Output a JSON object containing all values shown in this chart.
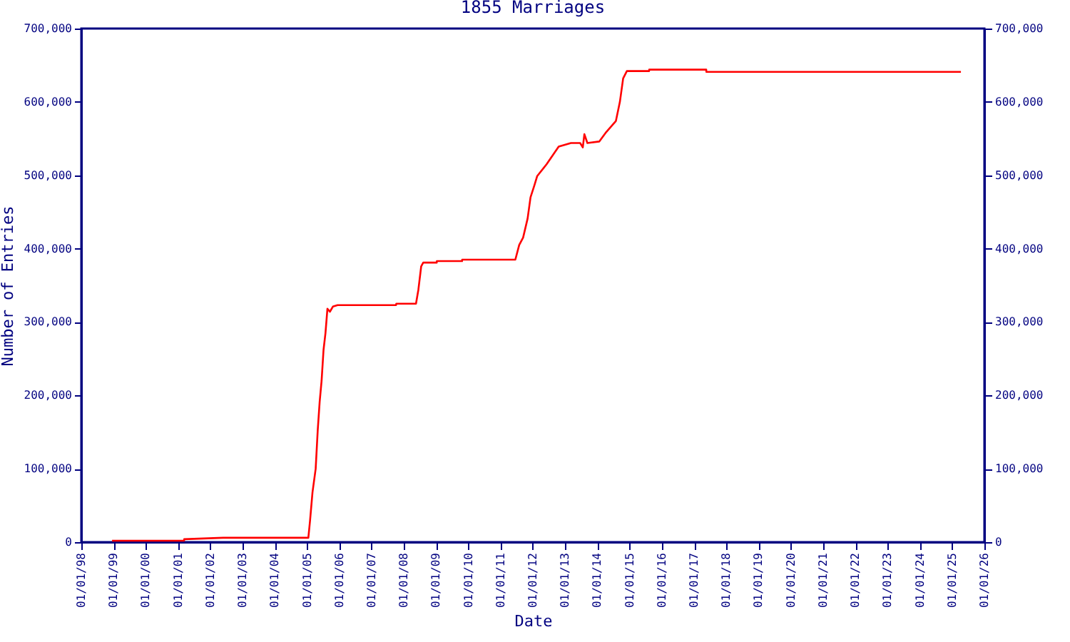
{
  "chart_data": {
    "type": "line",
    "title": "1855 Marriages",
    "xlabel": "Date",
    "ylabel": "Number of Entries",
    "x": [
      "1998-12-15",
      "2001-03-10",
      "2001-03-11",
      "2002-05-25",
      "2005-01-15",
      "2005-02-03",
      "2005-03-03",
      "2005-04-08",
      "2005-05-01",
      "2005-05-23",
      "2005-06-14",
      "2005-07-06",
      "2005-07-28",
      "2005-08-19",
      "2005-09-16",
      "2005-10-20",
      "2005-12-12",
      "2007-10-05",
      "2007-10-08",
      "2008-05-18",
      "2008-06-14",
      "2008-07-16",
      "2008-08-08",
      "2009-01-08",
      "2009-01-09",
      "2009-10-22",
      "2009-10-23",
      "2011-06-17",
      "2011-07-31",
      "2011-09-13",
      "2011-11-03",
      "2011-12-06",
      "2012-01-18",
      "2012-02-20",
      "2012-06-05",
      "2012-10-20",
      "2013-03-08",
      "2013-06-20",
      "2013-07-20",
      "2013-08-07",
      "2013-09-10",
      "2014-01-22",
      "2014-04-12",
      "2014-07-30",
      "2014-09-13",
      "2014-10-20",
      "2014-12-01",
      "2015-08-10",
      "2015-08-11",
      "2017-05-18",
      "2017-05-19",
      "2025-04-10"
    ],
    "values": [
      2000,
      2000,
      4000,
      6000,
      6000,
      29000,
      68000,
      100000,
      152000,
      191000,
      220000,
      262000,
      285000,
      318000,
      314000,
      321000,
      323000,
      323000,
      325000,
      325000,
      344000,
      376000,
      381000,
      381000,
      383000,
      383000,
      385000,
      385000,
      405000,
      415000,
      441000,
      470000,
      486000,
      499000,
      515000,
      539000,
      544000,
      544000,
      538000,
      556000,
      544000,
      546000,
      559000,
      574000,
      600000,
      632000,
      642000,
      642000,
      644000,
      644000,
      641000,
      641000
    ],
    "color": "#ff0000",
    "marker": "none",
    "line_style": "solid",
    "grid": false,
    "xlim": [
      "1998-01-01",
      "2026-01-01"
    ],
    "xticks": [
      {
        "value": "1998-01-01",
        "label": "01/01/98"
      },
      {
        "value": "1999-01-01",
        "label": "01/01/99"
      },
      {
        "value": "2000-01-01",
        "label": "01/01/00"
      },
      {
        "value": "2001-01-01",
        "label": "01/01/01"
      },
      {
        "value": "2002-01-01",
        "label": "01/01/02"
      },
      {
        "value": "2003-01-01",
        "label": "01/01/03"
      },
      {
        "value": "2004-01-01",
        "label": "01/01/04"
      },
      {
        "value": "2005-01-01",
        "label": "01/01/05"
      },
      {
        "value": "2006-01-01",
        "label": "01/01/06"
      },
      {
        "value": "2007-01-01",
        "label": "01/01/07"
      },
      {
        "value": "2008-01-01",
        "label": "01/01/08"
      },
      {
        "value": "2009-01-01",
        "label": "01/01/09"
      },
      {
        "value": "2010-01-01",
        "label": "01/01/10"
      },
      {
        "value": "2011-01-01",
        "label": "01/01/11"
      },
      {
        "value": "2012-01-01",
        "label": "01/01/12"
      },
      {
        "value": "2013-01-01",
        "label": "01/01/13"
      },
      {
        "value": "2014-01-01",
        "label": "01/01/14"
      },
      {
        "value": "2015-01-01",
        "label": "01/01/15"
      },
      {
        "value": "2016-01-01",
        "label": "01/01/16"
      },
      {
        "value": "2017-01-01",
        "label": "01/01/17"
      },
      {
        "value": "2018-01-01",
        "label": "01/01/18"
      },
      {
        "value": "2019-01-01",
        "label": "01/01/19"
      },
      {
        "value": "2020-01-01",
        "label": "01/01/20"
      },
      {
        "value": "2021-01-01",
        "label": "01/01/21"
      },
      {
        "value": "2022-01-01",
        "label": "01/01/22"
      },
      {
        "value": "2023-01-01",
        "label": "01/01/23"
      },
      {
        "value": "2024-01-01",
        "label": "01/01/24"
      },
      {
        "value": "2025-01-01",
        "label": "01/01/25"
      },
      {
        "value": "2026-01-01",
        "label": "01/01/26"
      }
    ],
    "ylim": [
      0,
      700000
    ],
    "yticks": [
      0,
      {
        "value": 100000,
        "label": "100,000"
      },
      {
        "value": 200000,
        "label": "200,000"
      },
      {
        "value": 300000,
        "label": "300,000"
      },
      {
        "value": 400000,
        "label": "400,000"
      },
      {
        "value": 500000,
        "label": "500,000"
      },
      {
        "value": 600000,
        "label": "600,000"
      },
      {
        "value": 700000,
        "label": "700,000"
      }
    ],
    "y2lim": [
      0,
      700000
    ],
    "y2ticks": [
      0,
      {
        "value": 100000,
        "label": "100,000"
      },
      {
        "value": 200000,
        "label": "200,000"
      },
      {
        "value": 300000,
        "label": "300,000"
      },
      {
        "value": 400000,
        "label": "400,000"
      },
      {
        "value": 500000,
        "label": "500,000"
      },
      {
        "value": 600000,
        "label": "600,000"
      },
      {
        "value": 700000,
        "label": "700,000"
      }
    ]
  }
}
